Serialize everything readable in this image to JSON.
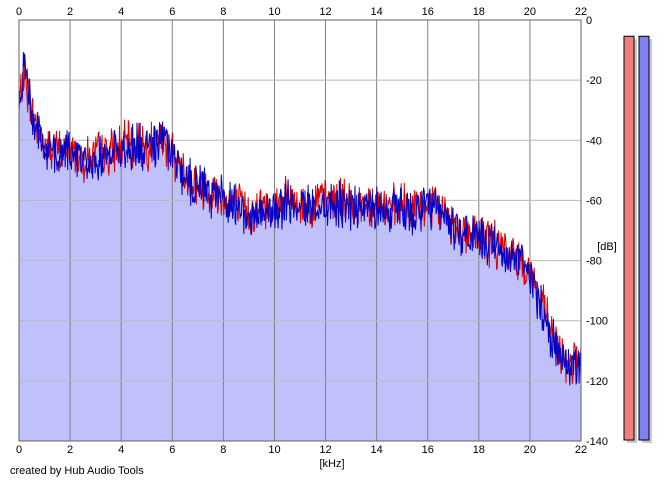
{
  "footer": {
    "credit": "created by Hub Audio Tools"
  },
  "colors": {
    "background": "#ffffff",
    "plot_fill": "#c0c0fb",
    "grid_major": "#808080",
    "grid_minor": "#b8b8b8",
    "left_channel": "#e00000",
    "right_channel": "#0000c8",
    "meter_left": "#f08080",
    "meter_right": "#8080f0"
  },
  "chart_data": {
    "type": "area",
    "title": "",
    "xlabel": "[kHz]",
    "ylabel": "[dB]",
    "xlim": [
      0,
      22
    ],
    "ylim": [
      -140,
      0
    ],
    "x_ticks": [
      0,
      2,
      4,
      6,
      8,
      10,
      12,
      14,
      16,
      18,
      20,
      22
    ],
    "y_ticks": [
      0,
      -20,
      -40,
      -60,
      -80,
      -100,
      -120,
      -140
    ],
    "x_tick_labels_top": true,
    "x_tick_labels_bottom": true,
    "y_axis_side": "right",
    "grid": true,
    "legend": "none",
    "x": [
      0,
      0.1,
      0.2,
      0.4,
      0.6,
      1.0,
      1.5,
      2.0,
      2.5,
      3.0,
      3.5,
      4.0,
      4.5,
      5.0,
      5.5,
      5.9,
      6.2,
      6.5,
      7.0,
      7.5,
      8.0,
      8.5,
      9.0,
      9.5,
      10.0,
      10.5,
      11.0,
      11.5,
      12.0,
      12.5,
      13.0,
      13.5,
      14.0,
      14.5,
      15.0,
      15.5,
      16.0,
      16.5,
      17.0,
      17.5,
      18.0,
      18.5,
      19.0,
      19.5,
      19.9,
      20.2,
      20.5,
      20.8,
      21.0,
      21.2,
      21.5,
      21.8,
      22.0
    ],
    "series": [
      {
        "values": [
          -30,
          -23,
          -18,
          -26,
          -33,
          -42,
          -44,
          -43,
          -46,
          -45,
          -44,
          -42,
          -41,
          -42,
          -40,
          -42,
          -47,
          -52,
          -55,
          -57,
          -59,
          -61,
          -64,
          -63,
          -62,
          -60,
          -62,
          -61,
          -60,
          -60,
          -61,
          -61,
          -61,
          -63,
          -62,
          -63,
          -62,
          -63,
          -68,
          -70,
          -72,
          -74,
          -77,
          -79,
          -82,
          -88,
          -95,
          -103,
          -108,
          -112,
          -113,
          -114,
          -113
        ]
      },
      {
        "values": [
          -31,
          -24,
          -15,
          -25,
          -34,
          -43,
          -45,
          -44,
          -47,
          -46,
          -45,
          -43,
          -42,
          -43,
          -41,
          -43,
          -48,
          -53,
          -56,
          -58,
          -60,
          -62,
          -65,
          -64,
          -63,
          -61,
          -63,
          -62,
          -61,
          -61,
          -62,
          -62,
          -62,
          -64,
          -63,
          -64,
          -63,
          -64,
          -69,
          -71,
          -73,
          -75,
          -78,
          -80,
          -83,
          -89,
          -96,
          -104,
          -109,
          -113,
          -114,
          -115,
          -114
        ]
      }
    ],
    "level_meters": [
      {
        "value": 0.98
      },
      {
        "value": 0.98
      }
    ]
  }
}
